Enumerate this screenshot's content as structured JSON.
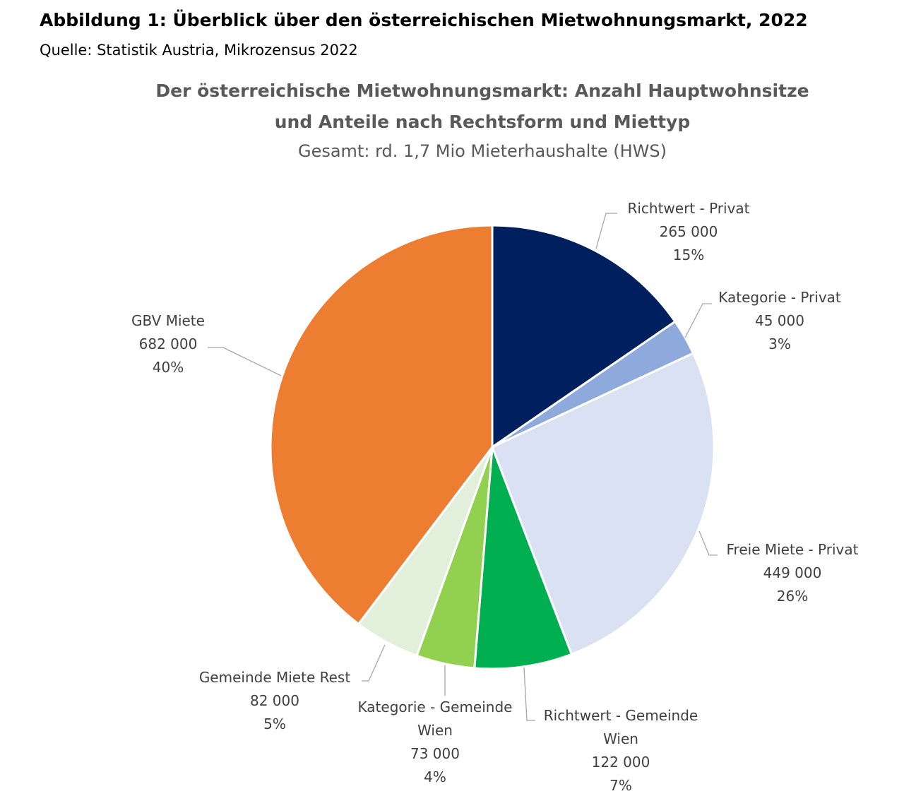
{
  "figure": {
    "heading": "Abbildung 1: Überblick über den österreichischen Mietwohnungsmarkt, 2022",
    "source": "Quelle: Statistik Austria, Mikrozensus 2022"
  },
  "chart_data": {
    "type": "pie",
    "title_line1": "Der österreichische Mietwohnungsmarkt: Anzahl Hauptwohnsitze",
    "title_line2": "und Anteile nach Rechtsform und Miettyp",
    "subtitle": "Gesamt: rd. 1,7 Mio Mieterhaushalte (HWS)",
    "slices": [
      {
        "label": [
          "Richtwert - Privat"
        ],
        "value_text": "265 000",
        "percent_text": "15%",
        "value": 265000,
        "color": "#001F5F"
      },
      {
        "label": [
          "Kategorie - Privat"
        ],
        "value_text": "45 000",
        "percent_text": "3%",
        "value": 45000,
        "color": "#8EA9DB"
      },
      {
        "label": [
          "Freie Miete - Privat"
        ],
        "value_text": "449 000",
        "percent_text": "26%",
        "value": 449000,
        "color": "#D9E1F2"
      },
      {
        "label": [
          "Richtwert - Gemeinde",
          "Wien"
        ],
        "value_text": "122 000",
        "percent_text": "7%",
        "value": 122000,
        "color": "#00B050"
      },
      {
        "label": [
          "Kategorie - Gemeinde",
          "Wien"
        ],
        "value_text": "73 000",
        "percent_text": "4%",
        "value": 73000,
        "color": "#92D050"
      },
      {
        "label": [
          "Gemeinde Miete Rest"
        ],
        "value_text": "82 000",
        "percent_text": "5%",
        "value": 82000,
        "color": "#E2EFDA"
      },
      {
        "label": [
          "GBV Miete"
        ],
        "value_text": "682 000",
        "percent_text": "40%",
        "value": 682000,
        "color": "#ED7D31"
      }
    ]
  }
}
